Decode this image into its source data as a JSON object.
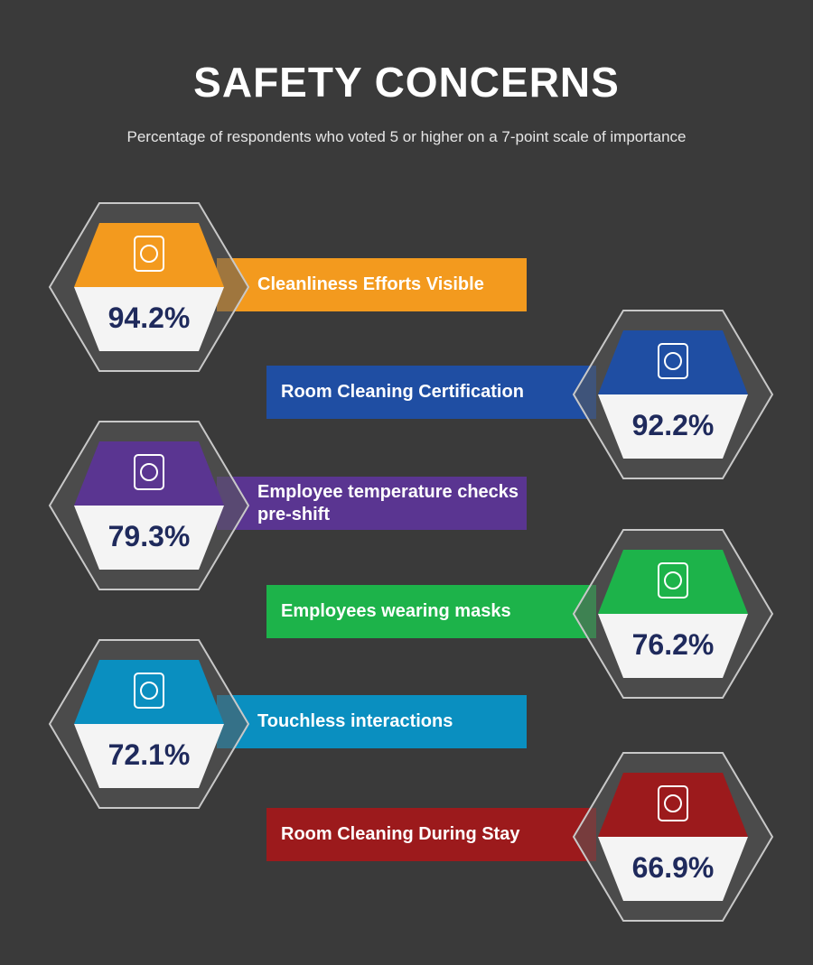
{
  "header": {
    "title": "SAFETY CONCERNS",
    "subtitle": "Percentage of respondents who voted 5 or higher on a 7-point scale of importance"
  },
  "items": [
    {
      "label": "Cleanliness Efforts Visible",
      "value": "94.2%",
      "color": "#f39a1e"
    },
    {
      "label": "Room Cleaning Certification",
      "value": "92.2%",
      "color": "#1f4ea3"
    },
    {
      "label": "Employee temperature checks pre-shift",
      "value": "79.3%",
      "color": "#5a3591"
    },
    {
      "label": "Employees wearing masks",
      "value": "76.2%",
      "color": "#1db34a"
    },
    {
      "label": "Touchless interactions",
      "value": "72.1%",
      "color": "#0a8fc0"
    },
    {
      "label": "Room Cleaning During Stay",
      "value": "66.9%",
      "color": "#9c1a1c"
    }
  ]
}
